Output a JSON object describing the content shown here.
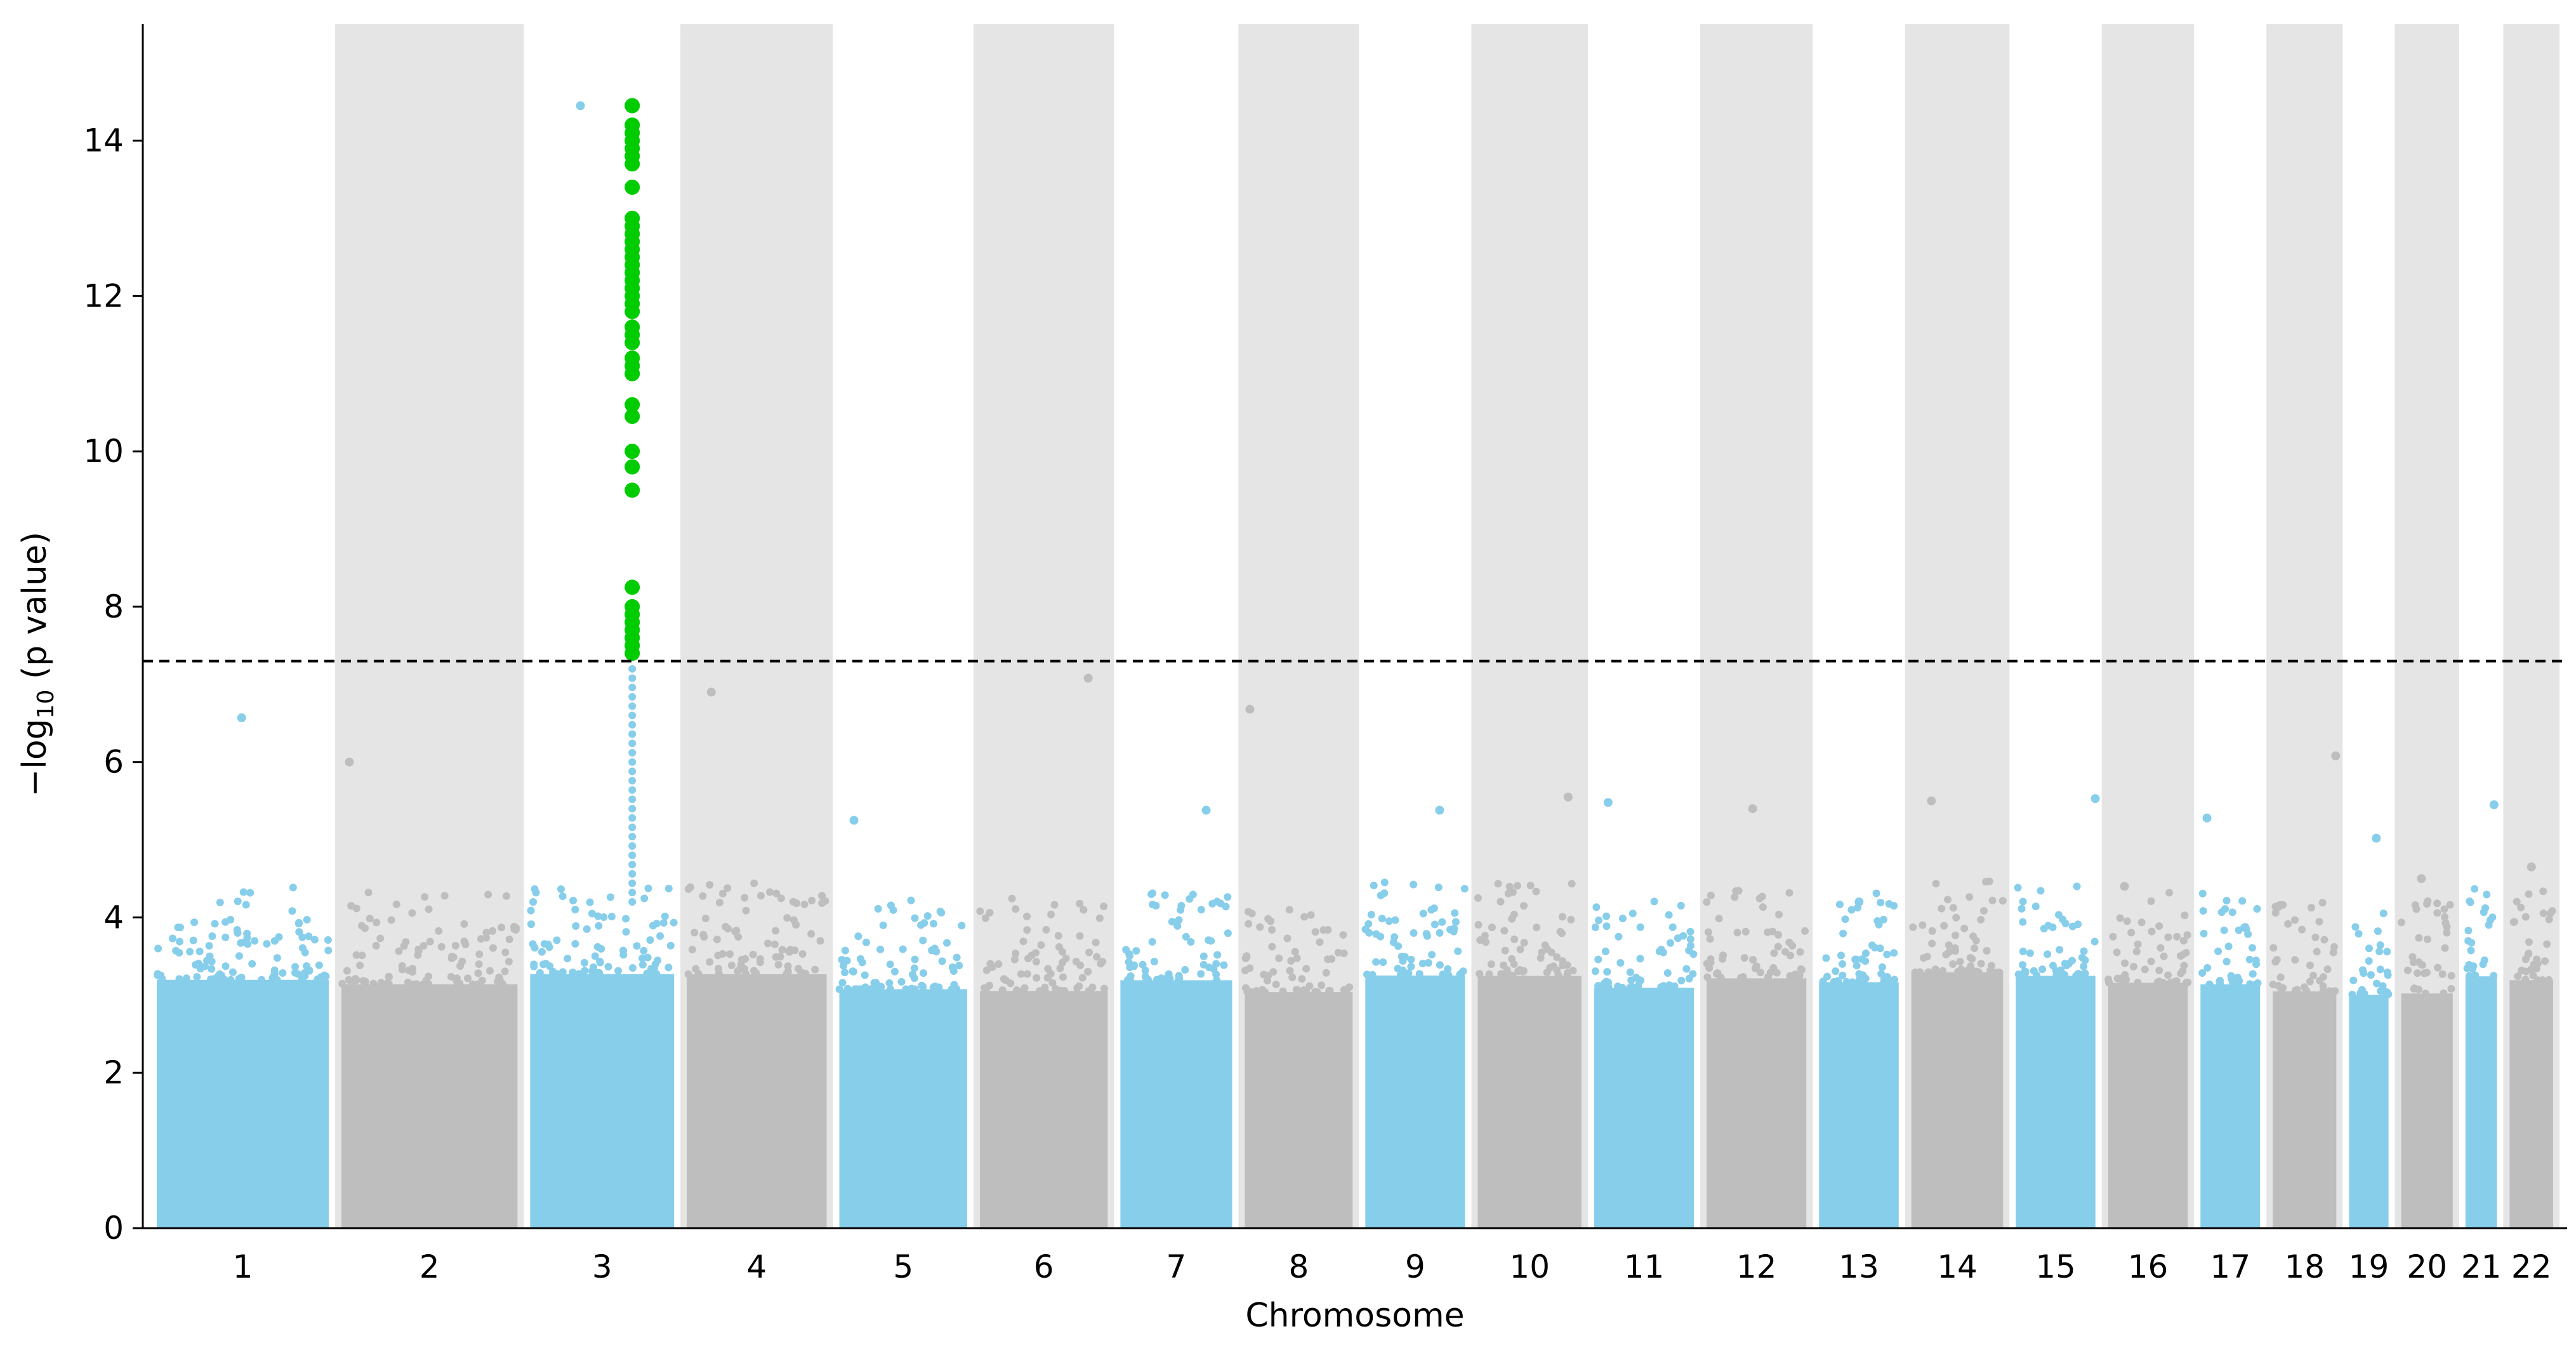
{
  "chart_data": {
    "type": "scatter",
    "subtype": "manhattan",
    "title": "",
    "xlabel": "Chromosome",
    "ylabel_main": "−log",
    "ylabel_sub": "10",
    "ylabel_rest": " (p value)",
    "ylim": [
      0,
      15.5
    ],
    "yticks": [
      0,
      2,
      4,
      6,
      8,
      10,
      12,
      14
    ],
    "threshold": 7.3,
    "threshold_style": "dashed",
    "colors": {
      "odd": "#87ceeb",
      "even": "#bebebe",
      "band": "#e5e5e5",
      "significant": "#00cc00",
      "threshold": "#000000"
    },
    "chromosomes": [
      {
        "label": "1",
        "x_start": 0.0,
        "x_end": 4.6,
        "max_value": 6.57
      },
      {
        "label": "2",
        "x_start": 4.6,
        "x_end": 9.3,
        "max_value": 6.0
      },
      {
        "label": "3",
        "x_start": 9.3,
        "x_end": 13.2,
        "max_value": 14.45
      },
      {
        "label": "4",
        "x_start": 13.2,
        "x_end": 17.0,
        "max_value": 6.9
      },
      {
        "label": "5",
        "x_start": 17.0,
        "x_end": 20.5,
        "max_value": 5.25
      },
      {
        "label": "6",
        "x_start": 20.5,
        "x_end": 24.0,
        "max_value": 7.08
      },
      {
        "label": "7",
        "x_start": 24.0,
        "x_end": 27.1,
        "max_value": 5.38
      },
      {
        "label": "8",
        "x_start": 27.1,
        "x_end": 30.1,
        "max_value": 6.68
      },
      {
        "label": "9",
        "x_start": 30.1,
        "x_end": 32.9,
        "max_value": 5.38
      },
      {
        "label": "10",
        "x_start": 32.9,
        "x_end": 35.8,
        "max_value": 5.55
      },
      {
        "label": "11",
        "x_start": 35.8,
        "x_end": 38.6,
        "max_value": 5.48
      },
      {
        "label": "12",
        "x_start": 38.6,
        "x_end": 41.4,
        "max_value": 5.4
      },
      {
        "label": "13",
        "x_start": 41.4,
        "x_end": 43.7,
        "max_value": 4.2
      },
      {
        "label": "14",
        "x_start": 43.7,
        "x_end": 46.3,
        "max_value": 5.5
      },
      {
        "label": "15",
        "x_start": 46.3,
        "x_end": 48.6,
        "max_value": 5.53
      },
      {
        "label": "16",
        "x_start": 48.6,
        "x_end": 50.9,
        "max_value": 4.4
      },
      {
        "label": "17",
        "x_start": 50.9,
        "x_end": 52.7,
        "max_value": 5.28
      },
      {
        "label": "18",
        "x_start": 52.7,
        "x_end": 54.6,
        "max_value": 6.08
      },
      {
        "label": "19",
        "x_start": 54.6,
        "x_end": 55.9,
        "max_value": 5.02
      },
      {
        "label": "20",
        "x_start": 55.9,
        "x_end": 57.5,
        "max_value": 4.5
      },
      {
        "label": "21",
        "x_start": 57.5,
        "x_end": 58.6,
        "max_value": 5.45
      },
      {
        "label": "22",
        "x_start": 58.6,
        "x_end": 60.0,
        "max_value": 4.65
      }
    ],
    "significant_points": {
      "chromosome": "3",
      "x": 12.0,
      "values": [
        14.45,
        14.2,
        14.1,
        14.0,
        13.9,
        13.8,
        13.7,
        13.4,
        13.0,
        12.9,
        12.8,
        12.7,
        12.6,
        12.5,
        12.4,
        12.3,
        12.2,
        12.1,
        12.0,
        11.9,
        11.8,
        11.6,
        11.5,
        11.4,
        11.2,
        11.1,
        11.0,
        10.6,
        10.45,
        10.0,
        9.8,
        9.5,
        8.25,
        8.0,
        7.9,
        7.8,
        7.7,
        7.6,
        7.5,
        7.4
      ]
    },
    "grid": false,
    "legend": "none"
  }
}
